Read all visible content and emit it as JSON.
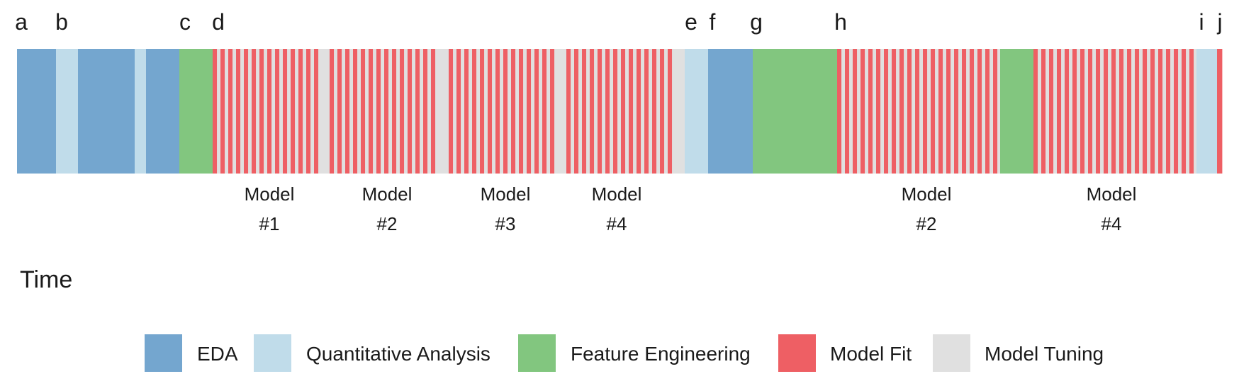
{
  "chart_data": {
    "type": "timeline",
    "title": "",
    "xlabel": "Time",
    "xlim": [
      0,
      1700
    ],
    "activities": [
      {
        "key": "eda",
        "name": "EDA",
        "color": "#74A6CF"
      },
      {
        "key": "qa",
        "name": "Quantitative Analysis",
        "color": "#C0DCEA"
      },
      {
        "key": "fe",
        "name": "Feature Engineering",
        "color": "#82C67F"
      },
      {
        "key": "fit",
        "name": "Model Fit",
        "color": "#EE5F64"
      },
      {
        "key": "tune",
        "name": "Model Tuning",
        "color": "#E0E0E0"
      }
    ],
    "segments": [
      {
        "activity": "eda",
        "start": 0,
        "end": 55
      },
      {
        "activity": "qa",
        "start": 55,
        "end": 86
      },
      {
        "activity": "eda",
        "start": 86,
        "end": 166
      },
      {
        "activity": "qa",
        "start": 166,
        "end": 182
      },
      {
        "activity": "eda",
        "start": 182,
        "end": 229
      },
      {
        "activity": "fe",
        "start": 229,
        "end": 276
      },
      {
        "activity": "alternating",
        "start": 276,
        "end": 428,
        "period": 11,
        "fit_fraction": 0.55
      },
      {
        "activity": "tune",
        "start": 428,
        "end": 441
      },
      {
        "activity": "alternating",
        "start": 441,
        "end": 593,
        "period": 11,
        "fit_fraction": 0.55
      },
      {
        "activity": "tune",
        "start": 593,
        "end": 609
      },
      {
        "activity": "alternating",
        "start": 609,
        "end": 761,
        "period": 11,
        "fit_fraction": 0.55
      },
      {
        "activity": "tune",
        "start": 761,
        "end": 775
      },
      {
        "activity": "alternating",
        "start": 775,
        "end": 926,
        "period": 11,
        "fit_fraction": 0.55
      },
      {
        "activity": "tune",
        "start": 926,
        "end": 942
      },
      {
        "activity": "qa",
        "start": 942,
        "end": 975
      },
      {
        "activity": "eda",
        "start": 975,
        "end": 1038
      },
      {
        "activity": "fe",
        "start": 1038,
        "end": 1157
      },
      {
        "activity": "alternating",
        "start": 1157,
        "end": 1387,
        "period": 11,
        "fit_fraction": 0.55
      },
      {
        "activity": "fe",
        "start": 1387,
        "end": 1434
      },
      {
        "activity": "alternating",
        "start": 1434,
        "end": 1664,
        "period": 11,
        "fit_fraction": 0.55
      },
      {
        "activity": "qa",
        "start": 1664,
        "end": 1693
      },
      {
        "activity": "fit",
        "start": 1693,
        "end": 1700
      }
    ],
    "markers": [
      {
        "label": "a",
        "at": 6
      },
      {
        "label": "b",
        "at": 63
      },
      {
        "label": "c",
        "at": 237
      },
      {
        "label": "d",
        "at": 284
      },
      {
        "label": "e",
        "at": 951
      },
      {
        "label": "f",
        "at": 981
      },
      {
        "label": "g",
        "at": 1043
      },
      {
        "label": "h",
        "at": 1162
      },
      {
        "label": "i",
        "at": 1671
      },
      {
        "label": "j",
        "at": 1697
      }
    ],
    "model_labels": [
      {
        "line1": "Model",
        "line2": "#1",
        "at": 356
      },
      {
        "line1": "Model",
        "line2": "#2",
        "at": 522
      },
      {
        "line1": "Model",
        "line2": "#3",
        "at": 689
      },
      {
        "line1": "Model",
        "line2": "#4",
        "at": 846
      },
      {
        "line1": "Model",
        "line2": "#2",
        "at": 1283
      },
      {
        "line1": "Model",
        "line2": "#4",
        "at": 1544
      }
    ],
    "legend_position": "bottom"
  }
}
